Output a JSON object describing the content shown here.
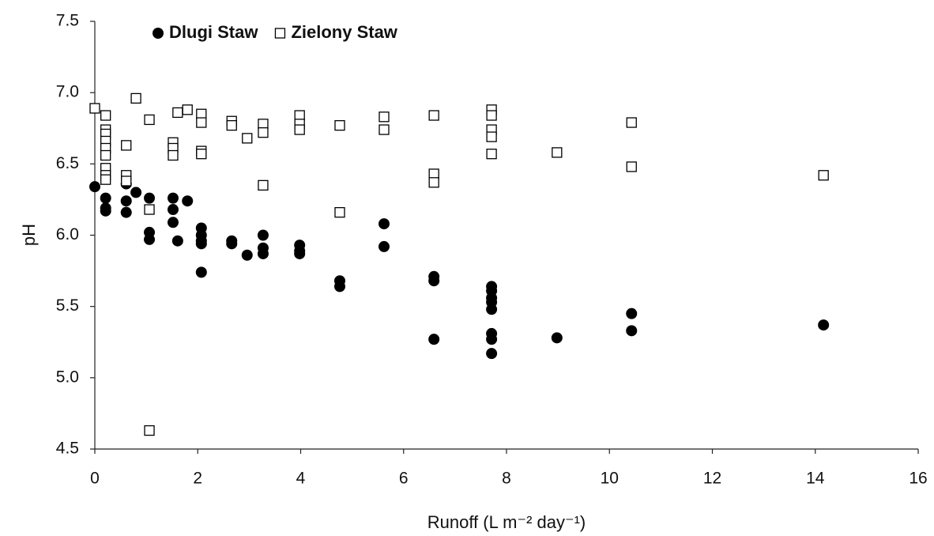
{
  "chart_data": {
    "type": "scatter",
    "x_label": "Runoff (L m⁻² day⁻¹)",
    "y_label": "pH",
    "xlim": [
      0,
      16
    ],
    "xticks": [
      0,
      2,
      4,
      6,
      8,
      10,
      12,
      14,
      16
    ],
    "ylim": [
      4.5,
      7.5
    ],
    "yticks": [
      4.5,
      {
        "value": 5,
        "label": "5.0"
      },
      5.5,
      {
        "value": 6,
        "label": "6.0"
      },
      6.5,
      {
        "value": 7,
        "label": "7.0"
      },
      7.5
    ],
    "grid": false,
    "legend": "top",
    "series": [
      {
        "name": "Dlugi Staw",
        "color": "#000000",
        "marker": "circle",
        "x": [
          0,
          0.21,
          0.21,
          0.21,
          0.61,
          0.8,
          0.61,
          0.61,
          1.06,
          1.06,
          1.06,
          1.52,
          1.52,
          1.52,
          1.61,
          1.8,
          2.07,
          2.07,
          2.07,
          2.07,
          2.07,
          2.66,
          2.66,
          2.96,
          3.27,
          3.27,
          3.27,
          3.98,
          3.98,
          3.98,
          4.76,
          4.76,
          5.62,
          5.62,
          6.59,
          6.59,
          6.59,
          7.71,
          7.71,
          7.71,
          7.71,
          7.71,
          7.71,
          7.71,
          7.71,
          8.98,
          10.43,
          10.43,
          14.16
        ],
        "values": [
          6.34,
          6.26,
          6.19,
          6.17,
          6.36,
          6.3,
          6.24,
          6.16,
          6.26,
          6.02,
          5.97,
          6.26,
          6.18,
          6.09,
          5.96,
          6.24,
          6.05,
          6.0,
          5.96,
          5.94,
          5.74,
          5.96,
          5.94,
          5.86,
          6.0,
          5.91,
          5.87,
          5.93,
          5.89,
          5.87,
          5.68,
          5.64,
          6.08,
          5.92,
          5.71,
          5.68,
          5.27,
          5.64,
          5.61,
          5.56,
          5.53,
          5.48,
          5.31,
          5.27,
          5.17,
          5.28,
          5.45,
          5.33,
          5.37
        ]
      },
      {
        "name": "Zielony Staw",
        "color": "#000000",
        "marker": "square",
        "x": [
          0,
          0.21,
          0.21,
          0.21,
          0.21,
          0.21,
          0.21,
          0.21,
          0.21,
          0.21,
          0.61,
          0.61,
          0.61,
          0.8,
          1.06,
          1.06,
          1.06,
          1.52,
          1.52,
          1.52,
          1.61,
          1.8,
          2.07,
          2.07,
          2.07,
          2.07,
          2.66,
          2.66,
          2.96,
          3.27,
          3.27,
          3.27,
          3.98,
          3.98,
          3.98,
          4.76,
          4.76,
          5.62,
          5.62,
          6.59,
          6.59,
          6.59,
          7.71,
          7.71,
          7.71,
          7.71,
          7.71,
          8.98,
          10.43,
          10.43,
          14.16
        ],
        "values": [
          6.89,
          6.84,
          6.74,
          6.71,
          6.66,
          6.61,
          6.56,
          6.47,
          6.42,
          6.39,
          6.63,
          6.42,
          6.38,
          6.96,
          6.81,
          6.18,
          4.63,
          6.65,
          6.61,
          6.56,
          6.86,
          6.88,
          6.85,
          6.79,
          6.59,
          6.57,
          6.8,
          6.77,
          6.68,
          6.78,
          6.72,
          6.35,
          6.84,
          6.78,
          6.74,
          6.77,
          6.16,
          6.83,
          6.74,
          6.84,
          6.43,
          6.37,
          6.88,
          6.84,
          6.74,
          6.69,
          6.57,
          6.58,
          6.79,
          6.48,
          6.42
        ]
      }
    ]
  }
}
